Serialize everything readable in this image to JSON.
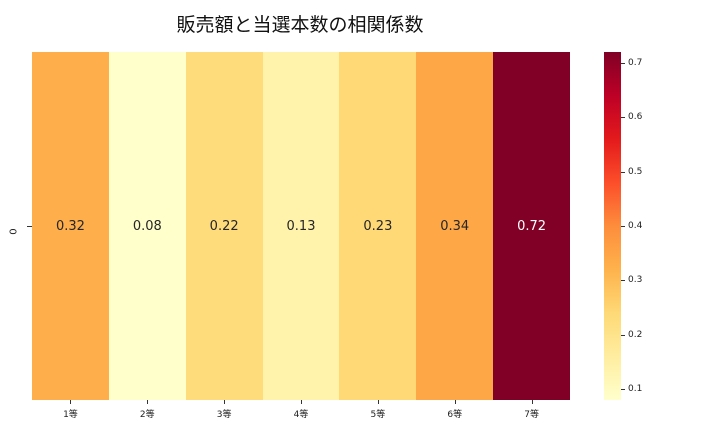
{
  "title": "販売額と当選本数の相関係数",
  "chart_data": {
    "type": "heatmap",
    "title": "販売額と当選本数の相関係数",
    "xlabel": "",
    "ylabel": "",
    "categories": [
      "1等",
      "2等",
      "3等",
      "4等",
      "5等",
      "6等",
      "7等"
    ],
    "y_categories": [
      "0"
    ],
    "values": [
      [
        0.32,
        0.08,
        0.22,
        0.13,
        0.23,
        0.34,
        0.72
      ]
    ],
    "labels": [
      "0.32",
      "0.08",
      "0.22",
      "0.13",
      "0.23",
      "0.34",
      "0.72"
    ],
    "colormap": "YlOrRd",
    "colorbar": {
      "min": 0.08,
      "max": 0.72,
      "ticks": [
        "0.1",
        "0.2",
        "0.3",
        "0.4",
        "0.5",
        "0.6",
        "0.7"
      ]
    }
  },
  "cells": [
    {
      "label": "0.32",
      "bg": "#feae4a",
      "fg": "#262626"
    },
    {
      "label": "0.08",
      "bg": "#ffffcc",
      "fg": "#262626"
    },
    {
      "label": "0.22",
      "bg": "#fedb7b",
      "fg": "#262626"
    },
    {
      "label": "0.13",
      "bg": "#fff2ab",
      "fg": "#262626"
    },
    {
      "label": "0.23",
      "bg": "#fed976",
      "fg": "#262626"
    },
    {
      "label": "0.34",
      "bg": "#fda747",
      "fg": "#262626"
    },
    {
      "label": "0.72",
      "bg": "#800026",
      "fg": "#ffffff"
    }
  ],
  "ytick": "0",
  "xticks": [
    "1等",
    "2等",
    "3等",
    "4等",
    "5等",
    "6等",
    "7等"
  ],
  "cbar_ticks": [
    {
      "label": "0.1",
      "v": 0.1
    },
    {
      "label": "0.2",
      "v": 0.2
    },
    {
      "label": "0.3",
      "v": 0.3
    },
    {
      "label": "0.4",
      "v": 0.4
    },
    {
      "label": "0.5",
      "v": 0.5
    },
    {
      "label": "0.6",
      "v": 0.6
    },
    {
      "label": "0.7",
      "v": 0.7
    }
  ]
}
